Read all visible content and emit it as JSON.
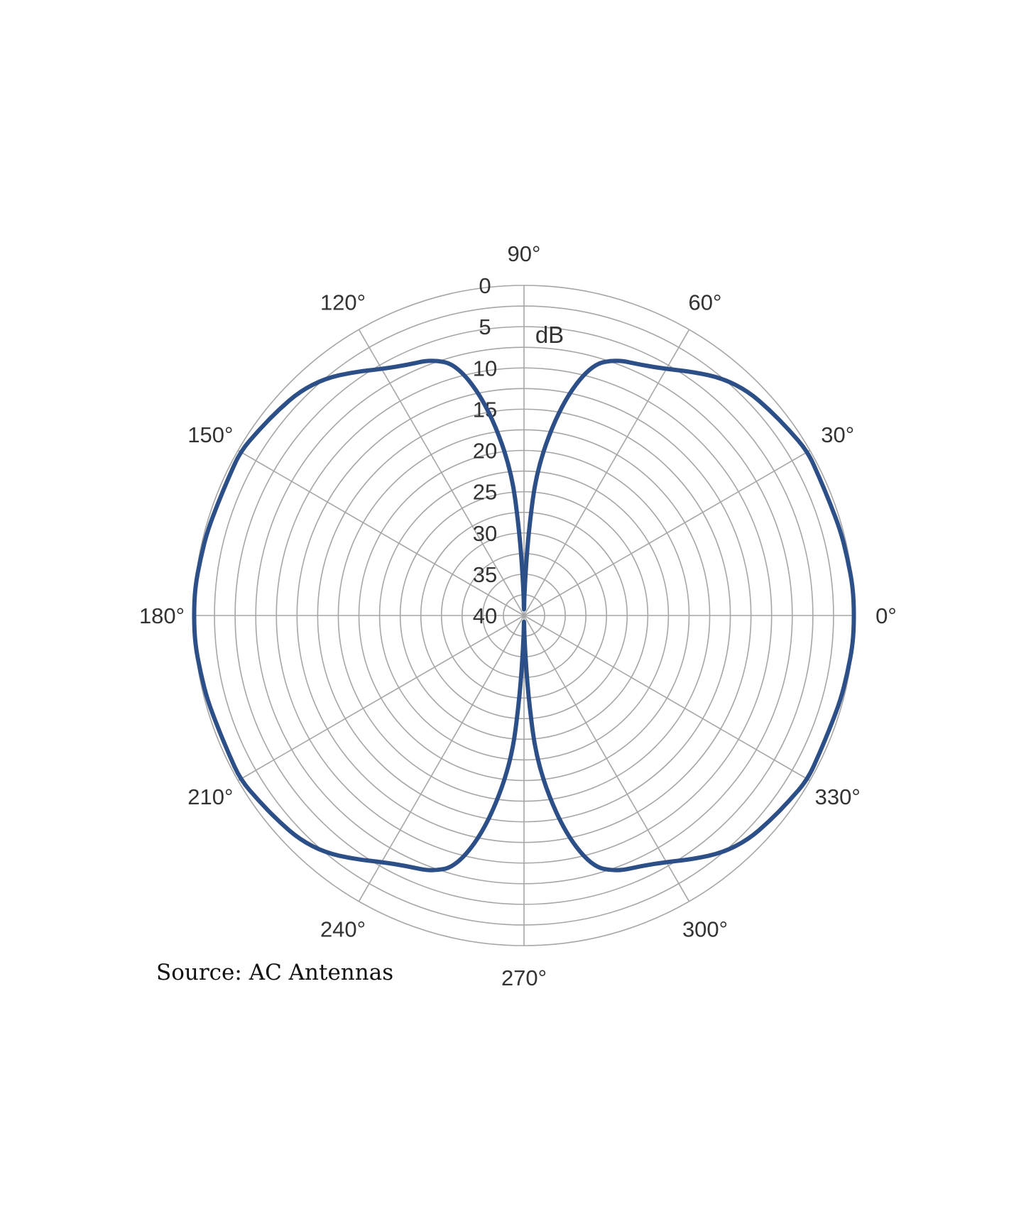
{
  "chart_data": {
    "type": "polar-line",
    "title": "",
    "radial_label": "dB",
    "radial_ticks": [
      "0",
      "5",
      "10",
      "15",
      "20",
      "25",
      "30",
      "35",
      "40"
    ],
    "radial_range": [
      0,
      40
    ],
    "radial_reversed": true,
    "angle_ticks": [
      "0°",
      "30°",
      "60°",
      "90°",
      "120°",
      "150°",
      "180°",
      "210°",
      "240°",
      "270°",
      "300°",
      "330°"
    ],
    "grid": true,
    "line_color": "#2c4f87",
    "grid_color": "#a6a6a6",
    "series": [
      {
        "angles": [
          0,
          5,
          10,
          15,
          20,
          25,
          30,
          35,
          40,
          45,
          50,
          55,
          60,
          65,
          70,
          75,
          80,
          85,
          87,
          89,
          90,
          91,
          93,
          95,
          100,
          105,
          110,
          115,
          120,
          125,
          130,
          135,
          140,
          145,
          150,
          155,
          160,
          165,
          170,
          175,
          180,
          185,
          190,
          195,
          200,
          205,
          210,
          215,
          220,
          225,
          230,
          235,
          240,
          245,
          250,
          255,
          260,
          265,
          267,
          269,
          270,
          271,
          273,
          275,
          280,
          285,
          290,
          295,
          300,
          305,
          310,
          315,
          320,
          325,
          330,
          335,
          340,
          345,
          350,
          355
        ],
        "values": [
          0,
          0,
          0.2,
          0.3,
          0.5,
          0.5,
          0.3,
          0.8,
          1.2,
          1.6,
          2.5,
          4,
          5.5,
          6.5,
          7,
          8.5,
          14,
          22,
          30,
          37,
          40,
          37,
          30,
          22,
          14,
          8.5,
          7,
          6.5,
          5.5,
          4,
          2.5,
          1.6,
          1.2,
          0.8,
          0.3,
          0.5,
          0.5,
          0.3,
          0.2,
          0,
          0,
          0,
          0.2,
          0.3,
          0.5,
          0.5,
          0.3,
          0.8,
          1.2,
          1.6,
          2.5,
          4,
          5.5,
          6.5,
          7,
          8.5,
          14,
          22,
          30,
          37,
          40,
          37,
          30,
          22,
          14,
          8.5,
          7,
          6.5,
          5.5,
          4,
          2.5,
          1.6,
          1.2,
          0.8,
          0.3,
          0.5,
          0.5,
          0.3,
          0.2,
          0
        ]
      }
    ]
  },
  "source": "Source: AC Antennas"
}
